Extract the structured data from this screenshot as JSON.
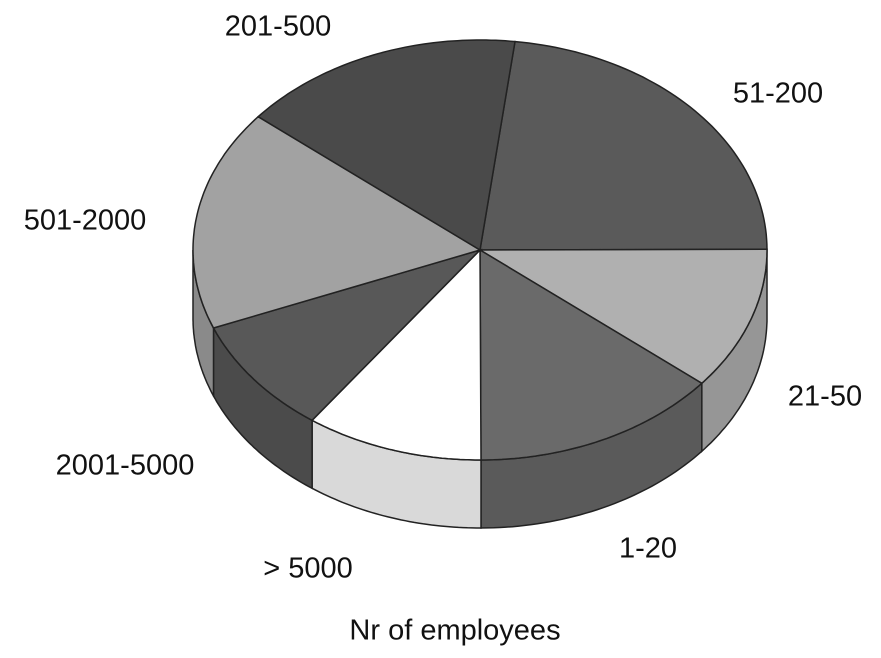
{
  "chart_data": {
    "type": "pie",
    "x_label": "Nr of employees",
    "categories": [
      "51-200",
      "21-50",
      "1-20",
      "> 5000",
      "2001-5000",
      "501-2000",
      "201-500"
    ],
    "values": [
      23,
      11,
      14,
      10,
      9,
      17,
      16
    ],
    "colors": [
      "#5a5a5a",
      "#b0b0b0",
      "#6a6a6a",
      "#ffffff",
      "#585858",
      "#a2a2a2",
      "#4a4a4a"
    ]
  }
}
